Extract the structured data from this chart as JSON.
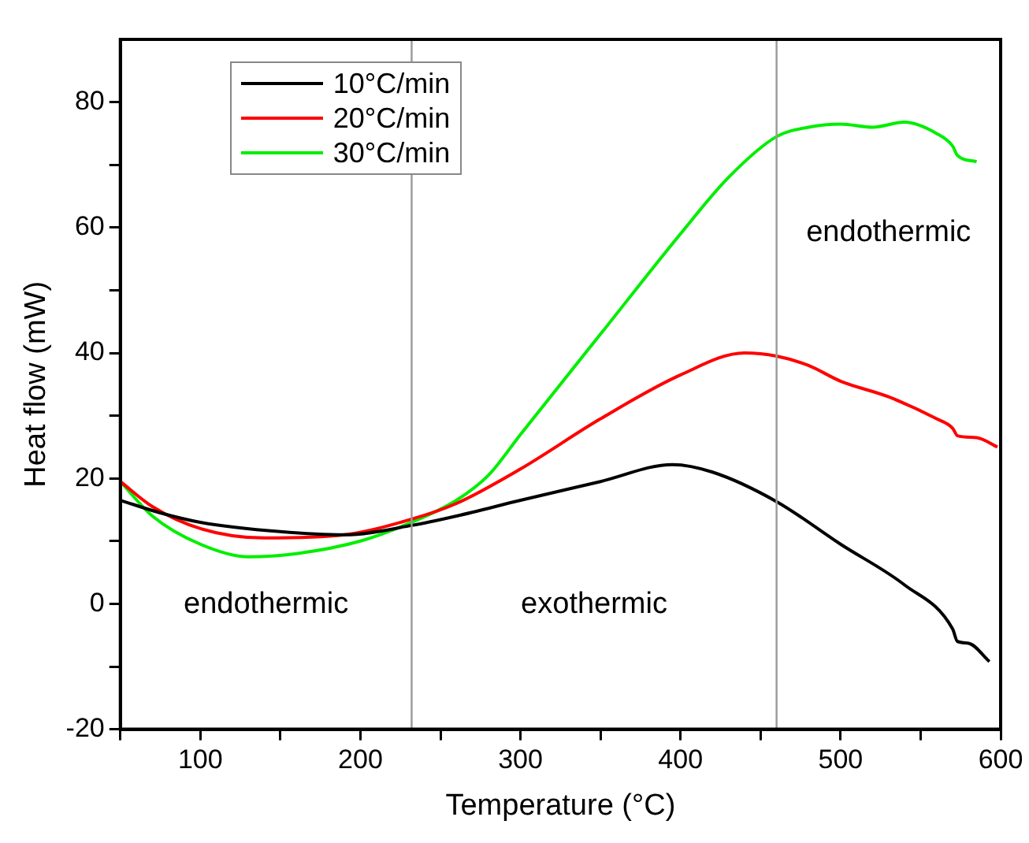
{
  "chart_data": {
    "type": "line",
    "xlabel": "Temperature (°C)",
    "ylabel": "Heat flow (mW)",
    "xlim": [
      50,
      600
    ],
    "ylim": [
      -20,
      90
    ],
    "xticks": [
      {
        "value": 50,
        "label": null
      },
      100,
      {
        "value": 150,
        "label": null
      },
      200,
      {
        "value": 250,
        "label": null
      },
      300,
      {
        "value": 350,
        "label": null
      },
      400,
      {
        "value": 450,
        "label": null
      },
      500,
      {
        "value": 550,
        "label": null
      },
      600
    ],
    "yticks": [
      -20,
      {
        "value": -10,
        "label": null
      },
      0,
      {
        "value": 10,
        "label": null
      },
      20,
      {
        "value": 30,
        "label": null
      },
      40,
      {
        "value": 50,
        "label": null
      },
      60,
      {
        "value": 70,
        "label": null
      },
      80
    ],
    "grid": false,
    "legend": "top left",
    "marker": "none",
    "line_style": "solid",
    "series": [
      {
        "name": "10°C/min",
        "color": "#000000",
        "x": [
          50,
          75,
          100,
          150,
          190,
          232,
          260,
          300,
          350,
          395,
          420,
          460,
          500,
          540,
          570,
          573,
          580,
          593
        ],
        "values": [
          16.5,
          14.5,
          13,
          11.5,
          11,
          12.5,
          14,
          16.5,
          19.5,
          22.2,
          21,
          16.3,
          9.5,
          3,
          -4,
          -6,
          -6.3,
          -9.2
        ]
      },
      {
        "name": "20°C/min",
        "color": "#ff0000",
        "x": [
          50,
          70,
          100,
          140,
          190,
          232,
          260,
          300,
          350,
          400,
          440,
          460,
          480,
          500,
          530,
          560,
          570,
          573,
          585,
          598
        ],
        "values": [
          19.5,
          15.5,
          12,
          10.5,
          11,
          13.5,
          16,
          21.5,
          29.5,
          36.5,
          40,
          39.5,
          38,
          35.5,
          33,
          29.5,
          28,
          26.8,
          26.5,
          25
        ]
      },
      {
        "name": "30°C/min",
        "color": "#00ee00",
        "x": [
          50,
          70,
          100,
          130,
          160,
          200,
          232,
          260,
          280,
          300,
          350,
          400,
          430,
          460,
          480,
          500,
          520,
          540,
          560,
          570,
          573,
          585
        ],
        "values": [
          19.5,
          14,
          9.5,
          7.5,
          8,
          10,
          13,
          16.5,
          20.5,
          27,
          43,
          59,
          68,
          74.5,
          76,
          76.5,
          76,
          76.8,
          75,
          73,
          71.5,
          70.5
        ]
      }
    ],
    "ref_lines": [
      {
        "axis": "x",
        "value": 232,
        "color": "#999999"
      },
      {
        "axis": "x",
        "value": 460,
        "color": "#999999"
      }
    ],
    "annotations": [
      "endothermic",
      "exothermic",
      "endothermic"
    ]
  }
}
